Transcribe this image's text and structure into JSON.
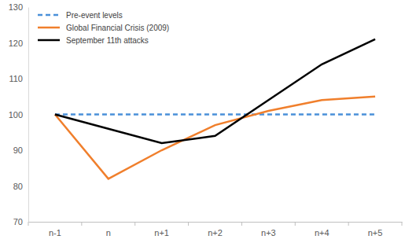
{
  "chart_data": {
    "type": "line",
    "categories": [
      "n-1",
      "n",
      "n+1",
      "n+2",
      "n+3",
      "n+4",
      "n+5"
    ],
    "series": [
      {
        "name": "Pre-event levels",
        "color": "#4a90d9",
        "line_style": "dashed",
        "values": [
          100,
          100,
          100,
          100,
          100,
          100,
          100
        ]
      },
      {
        "name": "Global Financial Crisis (2009)",
        "color": "#f07f2c",
        "line_style": "solid",
        "values": [
          100,
          82,
          90,
          97,
          101,
          104,
          105
        ]
      },
      {
        "name": "September 11th attacks",
        "color": "#000000",
        "line_style": "solid",
        "values": [
          100,
          96,
          92,
          94,
          104,
          114,
          121
        ]
      }
    ],
    "ylim": [
      70,
      130
    ],
    "yticks": [
      70,
      80,
      90,
      100,
      110,
      120,
      130
    ],
    "grid": false,
    "legend": "upper left"
  }
}
